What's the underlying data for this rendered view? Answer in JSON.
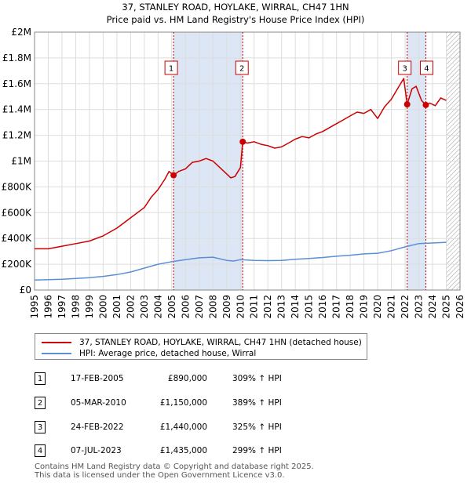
{
  "title_line1": "37, STANLEY ROAD, HOYLAKE, WIRRAL, CH47 1HN",
  "title_line2": "Price paid vs. HM Land Registry's House Price Index (HPI)",
  "legend": {
    "property_label": "37, STANLEY ROAD, HOYLAKE, WIRRAL, CH47 1HN (detached house)",
    "hpi_label": "HPI: Average price, detached house, Wirral"
  },
  "sales": [
    {
      "num": "1",
      "date": "17-FEB-2005",
      "price": "£890,000",
      "hpi": "309% ↑ HPI"
    },
    {
      "num": "2",
      "date": "05-MAR-2010",
      "price": "£1,150,000",
      "hpi": "389% ↑ HPI"
    },
    {
      "num": "3",
      "date": "24-FEB-2022",
      "price": "£1,440,000",
      "hpi": "325% ↑ HPI"
    },
    {
      "num": "4",
      "date": "07-JUL-2023",
      "price": "£1,435,000",
      "hpi": "299% ↑ HPI"
    }
  ],
  "footer_line1": "Contains HM Land Registry data © Copyright and database right 2025.",
  "footer_line2": "This data is licensed under the Open Government Licence v3.0.",
  "colors": {
    "property": "#cc0000",
    "hpi": "#5b8fd4",
    "grid": "#dddddd",
    "highlight": "#dce6f5",
    "hatch": "#999999"
  },
  "chart_data": {
    "type": "line",
    "xlabel": "",
    "ylabel": "",
    "xlim": [
      1995,
      2026
    ],
    "ylim": [
      0,
      2000000
    ],
    "x_ticks": [
      1995,
      1996,
      1997,
      1998,
      1999,
      2000,
      2001,
      2002,
      2003,
      2004,
      2005,
      2006,
      2007,
      2008,
      2009,
      2010,
      2011,
      2012,
      2013,
      2014,
      2015,
      2016,
      2017,
      2018,
      2019,
      2020,
      2021,
      2022,
      2023,
      2024,
      2025,
      2026
    ],
    "y_ticks": [
      0,
      200000,
      400000,
      600000,
      800000,
      1000000,
      1200000,
      1400000,
      1600000,
      1800000,
      2000000
    ],
    "y_tick_labels": [
      "£0",
      "£200K",
      "£400K",
      "£600K",
      "£800K",
      "£1M",
      "£1.2M",
      "£1.4M",
      "£1.6M",
      "£1.8M",
      "£2M"
    ],
    "grid": true,
    "legend_position": "below",
    "hatch_after": 2025.0,
    "sale_markers": [
      {
        "label": "1",
        "x": 2005.13,
        "y": 890000
      },
      {
        "label": "2",
        "x": 2010.17,
        "y": 1150000
      },
      {
        "label": "3",
        "x": 2022.15,
        "y": 1440000
      },
      {
        "label": "4",
        "x": 2023.51,
        "y": 1435000
      }
    ],
    "highlight_ranges": [
      [
        2005.13,
        2010.17
      ],
      [
        2022.15,
        2023.51
      ]
    ],
    "series": [
      {
        "name": "37, STANLEY ROAD, HOYLAKE, WIRRAL, CH47 1HN (detached house)",
        "x": [
          1995.0,
          1996.0,
          1997.0,
          1998.0,
          1999.0,
          2000.0,
          2001.0,
          2002.0,
          2003.0,
          2003.5,
          2004.0,
          2004.5,
          2004.8,
          2005.13,
          2005.5,
          2006.0,
          2006.5,
          2007.0,
          2007.5,
          2008.0,
          2008.5,
          2009.0,
          2009.3,
          2009.6,
          2010.0,
          2010.17,
          2010.5,
          2011.0,
          2011.5,
          2012.0,
          2012.5,
          2013.0,
          2013.5,
          2014.0,
          2014.5,
          2015.0,
          2015.5,
          2016.0,
          2016.5,
          2017.0,
          2017.5,
          2018.0,
          2018.5,
          2019.0,
          2019.5,
          2020.0,
          2020.5,
          2021.0,
          2021.5,
          2021.9,
          2022.15,
          2022.5,
          2022.8,
          2023.2,
          2023.51,
          2023.8,
          2024.2,
          2024.6,
          2025.0
        ],
        "values": [
          320000,
          320000,
          340000,
          360000,
          380000,
          420000,
          480000,
          560000,
          640000,
          720000,
          780000,
          860000,
          920000,
          890000,
          920000,
          940000,
          990000,
          1000000,
          1020000,
          1000000,
          950000,
          900000,
          870000,
          880000,
          950000,
          1150000,
          1140000,
          1150000,
          1130000,
          1120000,
          1100000,
          1110000,
          1140000,
          1170000,
          1190000,
          1180000,
          1210000,
          1230000,
          1260000,
          1290000,
          1320000,
          1350000,
          1380000,
          1370000,
          1400000,
          1330000,
          1420000,
          1480000,
          1570000,
          1640000,
          1440000,
          1560000,
          1580000,
          1470000,
          1435000,
          1450000,
          1430000,
          1490000,
          1470000
        ]
      },
      {
        "name": "HPI: Average price, detached house, Wirral",
        "x": [
          1995.0,
          1996.0,
          1997.0,
          1998.0,
          1999.0,
          2000.0,
          2001.0,
          2002.0,
          2003.0,
          2004.0,
          2005.0,
          2006.0,
          2007.0,
          2008.0,
          2009.0,
          2009.5,
          2010.0,
          2011.0,
          2012.0,
          2013.0,
          2014.0,
          2015.0,
          2016.0,
          2017.0,
          2018.0,
          2019.0,
          2020.0,
          2021.0,
          2022.0,
          2023.0,
          2024.0,
          2025.0
        ],
        "values": [
          78000,
          80000,
          84000,
          90000,
          96000,
          106000,
          120000,
          140000,
          170000,
          200000,
          220000,
          235000,
          250000,
          255000,
          230000,
          225000,
          235000,
          230000,
          228000,
          230000,
          238000,
          245000,
          252000,
          262000,
          270000,
          280000,
          285000,
          305000,
          335000,
          360000,
          365000,
          370000
        ]
      }
    ]
  }
}
